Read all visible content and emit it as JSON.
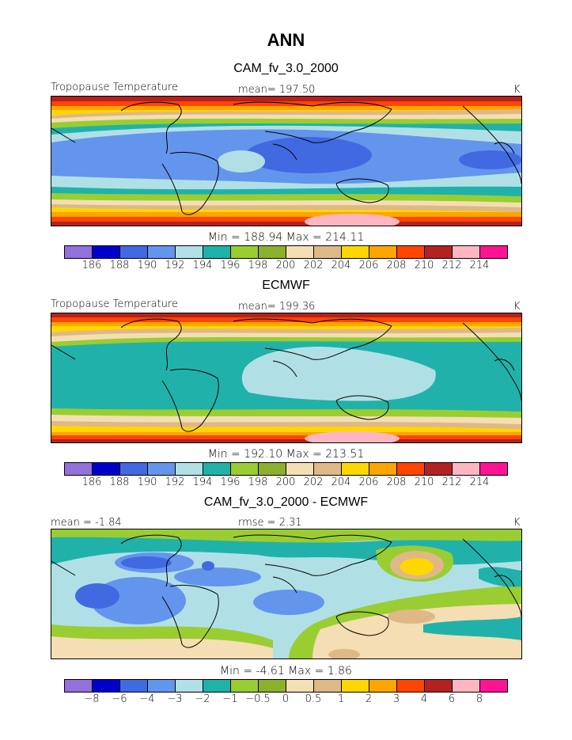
{
  "figure_title": "ANN",
  "colors": [
    "#9370db",
    "#0000cd",
    "#4169e1",
    "#6495ed",
    "#b0e0e6",
    "#20b2aa",
    "#9acd32",
    "#8db02c",
    "#f5deb3",
    "#deb887",
    "#ffd700",
    "#ffa500",
    "#ff4500",
    "#b22222",
    "#ffb6c1",
    "#ff1493"
  ],
  "panels": [
    {
      "title": "CAM_fv_3.0_2000",
      "left_label": "Tropopause Temperature",
      "center_label": "mean= 197.50",
      "right_label": "K",
      "minmax": "Min = 188.94 Max = 214.11",
      "ticks": [
        "186",
        "188",
        "190",
        "192",
        "194",
        "196",
        "198",
        "200",
        "202",
        "204",
        "206",
        "208",
        "210",
        "212",
        "214"
      ]
    },
    {
      "title": "ECMWF",
      "left_label": "Tropopause Temperature",
      "center_label": "mean= 199.36",
      "right_label": "K",
      "minmax": "Min = 192.10 Max = 213.51",
      "ticks": [
        "186",
        "188",
        "190",
        "192",
        "194",
        "196",
        "198",
        "200",
        "202",
        "204",
        "206",
        "208",
        "210",
        "212",
        "214"
      ]
    },
    {
      "title": "CAM_fv_3.0_2000 - ECMWF",
      "left_label": "mean =  -1.84",
      "center_label": "rmse =   2.31",
      "right_label": "K",
      "minmax": "Min =   -4.61 Max =    1.86",
      "ticks": [
        "−8",
        "−6",
        "−4",
        "−3",
        "−2",
        "−1",
        "−0.5",
        "0",
        "0.5",
        "1",
        "2",
        "3",
        "4",
        "6",
        "8"
      ]
    }
  ]
}
